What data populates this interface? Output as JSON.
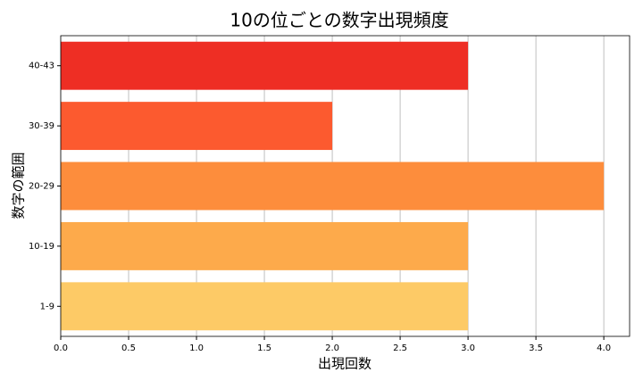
{
  "chart_data": {
    "type": "bar",
    "orientation": "horizontal",
    "title": "10の位ごとの数字出現頻度",
    "xlabel": "出現回数",
    "ylabel": "数字の範囲",
    "categories": [
      "1-9",
      "10-19",
      "20-29",
      "30-39",
      "40-43"
    ],
    "values": [
      3,
      3,
      4,
      2,
      3
    ],
    "colors": [
      "#fdca66",
      "#fdaa4b",
      "#fd8d3c",
      "#fc5a2f",
      "#ee2e24"
    ],
    "xlim": [
      0,
      4.19
    ],
    "xticks": [
      {
        "value": 0,
        "label": "0.0"
      },
      {
        "value": 0.5,
        "label": "0.5"
      },
      {
        "value": 1,
        "label": "1.0"
      },
      {
        "value": 1.5,
        "label": "1.5"
      },
      {
        "value": 2,
        "label": "2.0"
      },
      {
        "value": 2.5,
        "label": "2.5"
      },
      {
        "value": 3,
        "label": "3.0"
      },
      {
        "value": 3.5,
        "label": "3.5"
      },
      {
        "value": 4,
        "label": "4.0"
      }
    ],
    "grid": true
  }
}
